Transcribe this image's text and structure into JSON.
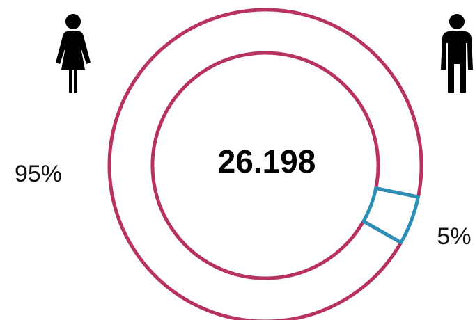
{
  "chart_data": {
    "type": "donut",
    "center_text": "26.198",
    "values": [
      95,
      5
    ],
    "value_labels": [
      "95%",
      "5%"
    ],
    "colors": [
      "#b8325f",
      "#2c8fb7"
    ]
  }
}
